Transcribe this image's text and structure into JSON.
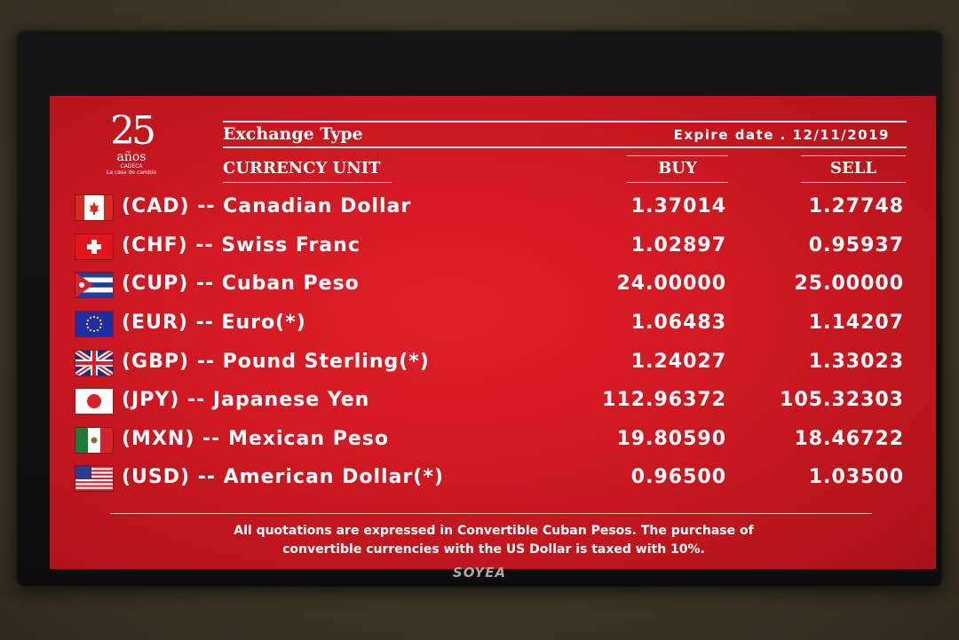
{
  "tv": {
    "brand": "SOYEA"
  },
  "logo": {
    "number": "25",
    "word": "años",
    "small1": "CADECA",
    "small2": "La casa de cambio"
  },
  "header": {
    "exchange_type": "Exchange Type",
    "expire_label": "Expire date . 12/11/2019",
    "currency_unit": "CURRENCY UNIT",
    "buy": "BUY",
    "sell": "SELL"
  },
  "rates": [
    {
      "flag": "canada-flag",
      "label": "(CAD) -- Canadian Dollar",
      "buy": "1.37014",
      "sell": "1.27748"
    },
    {
      "flag": "switzerland-flag",
      "label": "(CHF) -- Swiss Franc",
      "buy": "1.02897",
      "sell": "0.95937"
    },
    {
      "flag": "cuba-flag",
      "label": "(CUP) -- Cuban Peso",
      "buy": "24.00000",
      "sell": "25.00000"
    },
    {
      "flag": "eu-flag",
      "label": "(EUR) -- Euro(*)",
      "buy": "1.06483",
      "sell": "1.14207"
    },
    {
      "flag": "uk-flag",
      "label": "(GBP) -- Pound Sterling(*)",
      "buy": "1.24027",
      "sell": "1.33023"
    },
    {
      "flag": "japan-flag",
      "label": "(JPY) -- Japanese Yen",
      "buy": "112.96372",
      "sell": "105.32303"
    },
    {
      "flag": "mexico-flag",
      "label": "(MXN) -- Mexican Peso",
      "buy": "19.80590",
      "sell": "18.46722"
    },
    {
      "flag": "usa-flag",
      "label": "(USD) -- American Dollar(*)",
      "buy": "0.96500",
      "sell": "1.03500"
    }
  ],
  "footer": {
    "line1": "All quotations are expressed in Convertible Cuban Pesos. The purchase of",
    "line2": "convertible currencies with the US Dollar is taxed with 10%."
  },
  "colors": {
    "screen_red": "#d01a24",
    "text": "#ffffff",
    "bezel": "#111111"
  }
}
